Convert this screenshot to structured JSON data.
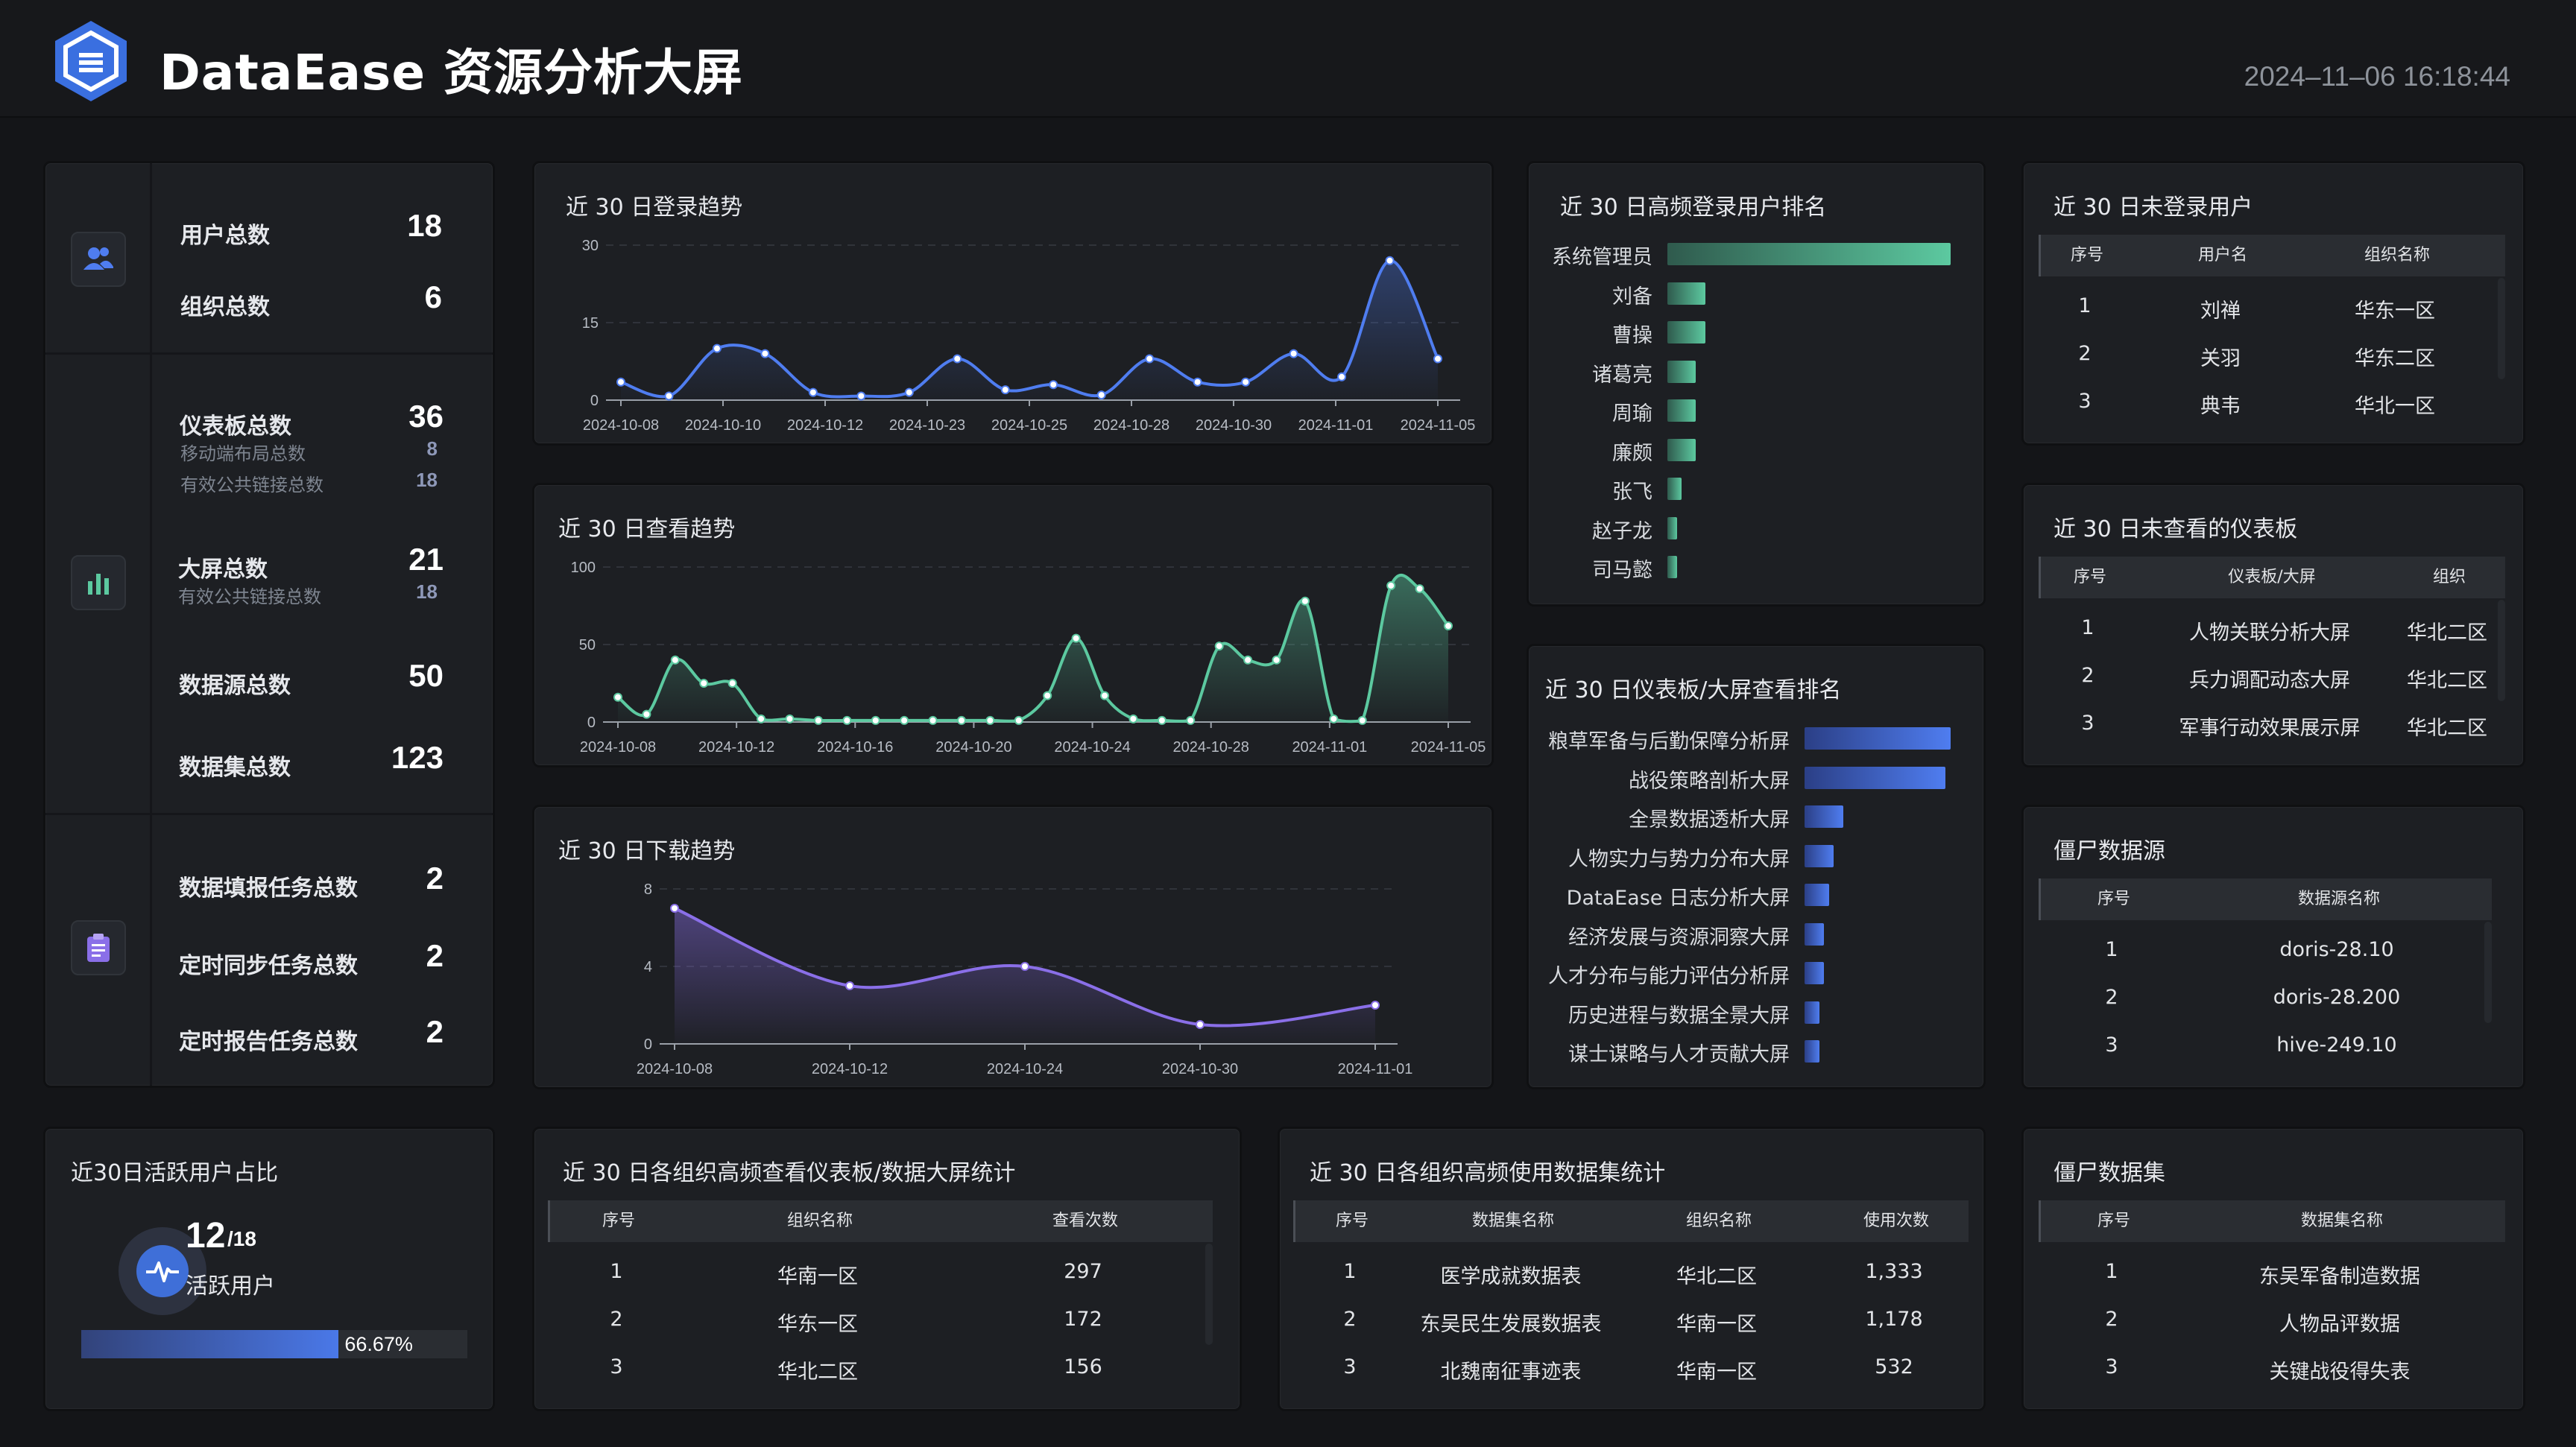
{
  "header": {
    "title": "DataEase 资源分析大屏",
    "datetime": "2024–11–06 16:18:44"
  },
  "stats": {
    "user_total_label": "用户总数",
    "user_total": "18",
    "org_total_label": "组织总数",
    "org_total": "6",
    "dashboard_total_label": "仪表板总数",
    "dashboard_total": "36",
    "mobile_layout_label": "移动端布局总数",
    "mobile_layout": "8",
    "dashboard_public_label": "有效公共链接总数",
    "dashboard_public": "18",
    "screen_total_label": "大屏总数",
    "screen_total": "21",
    "screen_public_label": "有效公共链接总数",
    "screen_public": "18",
    "datasource_total_label": "数据源总数",
    "datasource_total": "50",
    "dataset_total_label": "数据集总数",
    "dataset_total": "123",
    "fill_task_label": "数据填报任务总数",
    "fill_task": "2",
    "sync_task_label": "定时同步任务总数",
    "sync_task": "2",
    "report_task_label": "定时报告任务总数",
    "report_task": "2"
  },
  "login_trend": {
    "title": "近 30 日登录趋势"
  },
  "view_trend": {
    "title": "近 30 日查看趋势"
  },
  "download_trend": {
    "title": "近 30 日下载趋势"
  },
  "chart_data": [
    {
      "type": "line",
      "title": "近 30 日登录趋势",
      "ylim": [
        0,
        30
      ],
      "yticks": [
        "0",
        "15",
        "30"
      ],
      "xticks": [
        "2024-10-08",
        "2024-10-10",
        "2024-10-12",
        "2024-10-23",
        "2024-10-25",
        "2024-10-28",
        "2024-10-30",
        "2024-11-01",
        "2024-11-05"
      ],
      "values": [
        3.5,
        0.8,
        10,
        9,
        1.5,
        0.8,
        1.5,
        8,
        2,
        3,
        1,
        8,
        3.5,
        3.5,
        9,
        4.5,
        27,
        8
      ],
      "color": "#4f7df0"
    },
    {
      "type": "area",
      "title": "近 30 日查看趋势",
      "ylim": [
        0,
        100
      ],
      "yticks": [
        "0",
        "50",
        "100"
      ],
      "xticks": [
        "2024-10-08",
        "2024-10-12",
        "2024-10-16",
        "2024-10-20",
        "2024-10-24",
        "2024-10-28",
        "2024-11-01",
        "2024-11-05"
      ],
      "values": [
        16,
        5,
        40,
        25,
        25,
        2,
        2,
        1,
        1,
        1,
        1,
        1,
        1,
        1,
        1,
        17,
        54,
        17,
        2,
        1,
        1,
        49,
        40,
        40,
        78,
        2,
        1,
        88,
        86,
        62
      ],
      "color": "#5cc9a0"
    },
    {
      "type": "area",
      "title": "近 30 日下载趋势",
      "ylim": [
        0,
        8
      ],
      "yticks": [
        "0",
        "4",
        "8"
      ],
      "xticks": [
        "2024-10-08",
        "2024-10-12",
        "2024-10-24",
        "2024-10-30",
        "2024-11-01"
      ],
      "values": [
        7,
        3,
        4,
        1,
        2
      ],
      "color": "#8a6fe8"
    },
    {
      "type": "bar",
      "title": "近 30 日高频登录用户排名",
      "categories": [
        "系统管理员",
        "刘备",
        "曹操",
        "诸葛亮",
        "周瑜",
        "廉颇",
        "张飞",
        "赵子龙",
        "司马懿"
      ],
      "values": [
        30,
        4,
        4,
        3,
        3,
        3,
        1.5,
        1,
        1
      ]
    },
    {
      "type": "bar",
      "title": "近 30 日仪表板/大屏查看排名",
      "categories": [
        "粮草军备与后勤保障分析屏",
        "战役策略剖析大屏",
        "全景数据透析大屏",
        "人物实力与势力分布大屏",
        "DataEase 日志分析大屏",
        "经济发展与资源洞察大屏",
        "人才分布与能力评估分析屏",
        "历史进程与数据全景大屏",
        "谋士谋略与人才贡献大屏"
      ],
      "values": [
        30,
        29,
        8,
        6,
        5,
        4,
        4,
        3,
        3
      ]
    }
  ],
  "login_rank": {
    "title": "近 30 日高频登录用户排名"
  },
  "view_rank": {
    "title": "近 30 日仪表板/大屏查看排名"
  },
  "inactive_users": {
    "title": "近 30 日未登录用户",
    "columns": [
      "序号",
      "用户名",
      "组织名称"
    ],
    "rows": [
      [
        "1",
        "刘禅",
        "华东一区"
      ],
      [
        "2",
        "关羽",
        "华东二区"
      ],
      [
        "3",
        "典韦",
        "华北一区"
      ]
    ]
  },
  "unviewed_dashboards": {
    "title": "近 30 日未查看的仪表板",
    "columns": [
      "序号",
      "仪表板/大屏",
      "组织"
    ],
    "rows": [
      [
        "1",
        "人物关联分析大屏",
        "华北二区"
      ],
      [
        "2",
        "兵力调配动态大屏",
        "华北二区"
      ],
      [
        "3",
        "军事行动效果展示屏",
        "华北二区"
      ]
    ]
  },
  "zombie_datasources": {
    "title": "僵尸数据源",
    "columns": [
      "序号",
      "数据源名称"
    ],
    "rows": [
      [
        "1",
        "doris-28.10"
      ],
      [
        "2",
        "doris-28.200"
      ],
      [
        "3",
        "hive-249.10"
      ]
    ]
  },
  "zombie_datasets": {
    "title": "僵尸数据集",
    "columns": [
      "序号",
      "数据集名称"
    ],
    "rows": [
      [
        "1",
        "东吴军备制造数据"
      ],
      [
        "2",
        "人物品评数据"
      ],
      [
        "3",
        "关键战役得失表"
      ]
    ]
  },
  "active_users": {
    "title": "近30日活跃用户占比",
    "active": "12",
    "total": "/18",
    "label": "活跃用户",
    "percent_text": "66.67%",
    "ratio": 0.6667
  },
  "org_view_stats": {
    "title": "近 30 日各组织高频查看仪表板/数据大屏统计",
    "columns": [
      "序号",
      "组织名称",
      "查看次数"
    ],
    "rows": [
      [
        "1",
        "华南一区",
        "297"
      ],
      [
        "2",
        "华东一区",
        "172"
      ],
      [
        "3",
        "华北二区",
        "156"
      ]
    ]
  },
  "org_dataset_stats": {
    "title": "近 30 日各组织高频使用数据集统计",
    "columns": [
      "序号",
      "数据集名称",
      "组织名称",
      "使用次数"
    ],
    "rows": [
      [
        "1",
        "医学成就数据表",
        "华北二区",
        "1,333"
      ],
      [
        "2",
        "东吴民生发展数据表",
        "华南一区",
        "1,178"
      ],
      [
        "3",
        "北魏南征事迹表",
        "华南一区",
        "532"
      ]
    ]
  }
}
